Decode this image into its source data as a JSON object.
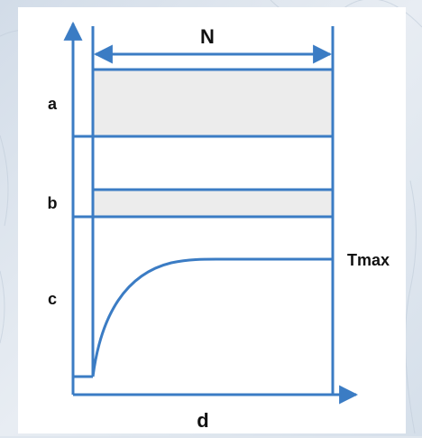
{
  "diagram": {
    "labels": {
      "a": "a",
      "b": "b",
      "c": "c",
      "d": "d",
      "n": "N",
      "tmax": "Tmax"
    }
  },
  "colors": {
    "stroke": "#3b7cc4",
    "band_fill": "#ececec",
    "text": "#111111",
    "page_background": "#dfe6ee",
    "card_background": "#ffffff"
  }
}
